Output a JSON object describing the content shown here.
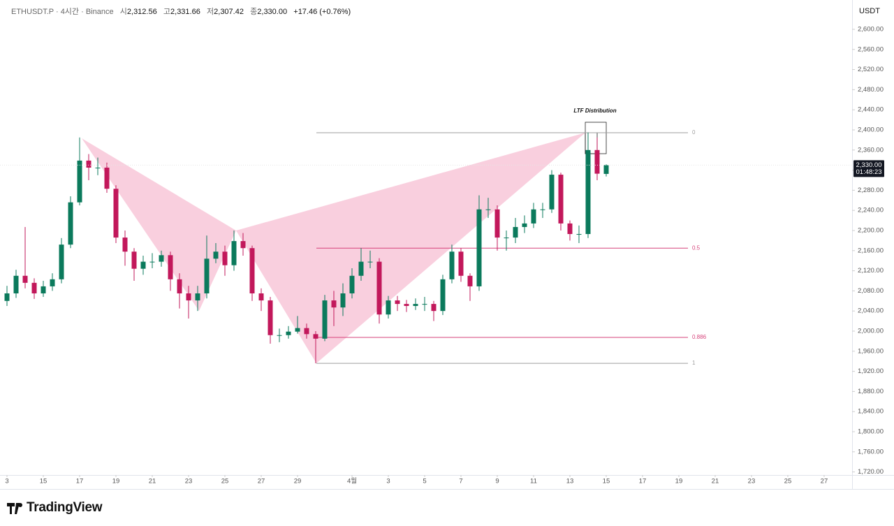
{
  "chart_data": {
    "type": "candlestick",
    "header": {
      "symbol": "ETHUSDT.P · 4시간 · Binance",
      "open_label": "시",
      "open": "2,312.56",
      "high_label": "고",
      "high": "2,331.66",
      "low_label": "저",
      "low": "2,307.42",
      "close_label": "종",
      "close": "2,330.00",
      "change": "+17.46 (+0.76%)"
    },
    "currency": "USDT",
    "last_price": {
      "value": 2330,
      "label": "2,330.00"
    },
    "countdown": "01:48:23",
    "annotation": "LTF Distribution",
    "fib_levels": [
      {
        "label": "0",
        "value": 2394.4
      },
      {
        "label": "0.5",
        "value": 2165
      },
      {
        "label": "0.886",
        "value": 1987.5
      },
      {
        "label": "1",
        "value": 1936
      }
    ],
    "brand": "TradingView",
    "up_color": "#0b7a5c",
    "down_color": "#c2185b",
    "x": [
      0,
      0.5,
      1,
      1.5,
      2,
      2.5,
      3,
      3.5,
      4,
      4.5,
      5,
      5.5,
      6,
      6.5,
      7,
      7.5,
      8,
      8.5,
      9,
      9.5,
      10,
      10.5,
      11,
      11.5,
      12,
      12.5,
      13,
      13.5,
      14,
      14.5,
      15,
      15.5,
      16,
      16.5,
      17,
      17.5,
      18,
      18.5,
      19,
      19.5,
      20,
      20.5,
      21,
      21.5,
      22,
      22.5,
      23,
      23.5,
      24,
      24.5,
      25,
      25.5,
      26,
      26.5,
      27,
      27.5,
      28,
      28.5,
      29,
      29.5,
      30,
      30.5,
      31,
      31.5,
      32,
      32.5,
      33
    ],
    "open": [
      2060,
      2075,
      2110,
      2096,
      2075,
      2089,
      2103,
      2172,
      2256,
      2339,
      2325,
      2325,
      2283,
      2186,
      2158,
      2124,
      2138,
      2138,
      2151,
      2103,
      2075,
      2061,
      2075,
      2144,
      2158,
      2131,
      2179,
      2165,
      2075,
      2061,
      1992,
      1992,
      1999,
      2006,
      1994,
      1985,
      2061,
      2047,
      2075,
      2110,
      2138,
      2138,
      2033,
      2061,
      2054,
      2050,
      2054,
      2054,
      2040,
      2103,
      2158,
      2110,
      2089,
      2242,
      2242,
      2186,
      2186,
      2207,
      2214,
      2242,
      2242,
      2311,
      2214,
      2193,
      2193,
      2360,
      2312.56
    ],
    "high": [
      2090,
      2122,
      2207,
      2105,
      2100,
      2115,
      2185,
      2268,
      2385,
      2352,
      2345,
      2335,
      2290,
      2200,
      2165,
      2150,
      2155,
      2160,
      2158,
      2115,
      2090,
      2090,
      2190,
      2175,
      2170,
      2200,
      2195,
      2170,
      2085,
      2068,
      2005,
      2010,
      2030,
      2015,
      2000,
      2072,
      2080,
      2095,
      2125,
      2165,
      2160,
      2145,
      2070,
      2070,
      2062,
      2065,
      2068,
      2060,
      2112,
      2172,
      2165,
      2115,
      2270,
      2265,
      2250,
      2200,
      2225,
      2230,
      2255,
      2255,
      2320,
      2315,
      2220,
      2210,
      2395,
      2385,
      2331.66
    ],
    "low": [
      2050,
      2066,
      2085,
      2064,
      2068,
      2080,
      2095,
      2165,
      2250,
      2300,
      2310,
      2275,
      2175,
      2130,
      2100,
      2112,
      2125,
      2128,
      2080,
      2045,
      2025,
      2040,
      2065,
      2135,
      2110,
      2120,
      2150,
      2060,
      2040,
      1975,
      1978,
      1985,
      1995,
      1985,
      1936,
      1980,
      2010,
      2030,
      2065,
      2100,
      2125,
      2015,
      2025,
      2040,
      2038,
      2042,
      2040,
      2020,
      2032,
      2095,
      2098,
      2060,
      2080,
      2225,
      2160,
      2160,
      2175,
      2195,
      2205,
      2225,
      2235,
      2200,
      2180,
      2175,
      2185,
      2300,
      2307.42
    ],
    "close": [
      2075,
      2110,
      2096,
      2075,
      2089,
      2103,
      2172,
      2256,
      2339,
      2325,
      2325,
      2283,
      2186,
      2158,
      2124,
      2138,
      2138,
      2151,
      2103,
      2075,
      2061,
      2075,
      2144,
      2158,
      2131,
      2179,
      2165,
      2075,
      2061,
      1992,
      1992,
      1999,
      2006,
      1994,
      1985,
      2061,
      2047,
      2075,
      2110,
      2138,
      2138,
      2033,
      2061,
      2054,
      2050,
      2054,
      2054,
      2040,
      2103,
      2158,
      2110,
      2089,
      2242,
      2242,
      2186,
      2186,
      2207,
      2214,
      2242,
      2242,
      2311,
      2214,
      2193,
      2193,
      2360,
      2313,
      2330
    ],
    "xlim": [
      -0.385,
      46.54
    ],
    "ylim": [
      1713.9,
      2658.3
    ],
    "xticks": [
      {
        "value": 0,
        "label": "3"
      },
      {
        "value": 2,
        "label": "15"
      },
      {
        "value": 4,
        "label": "17"
      },
      {
        "value": 6,
        "label": "19"
      },
      {
        "value": 8,
        "label": "21"
      },
      {
        "value": 10,
        "label": "23"
      },
      {
        "value": 12,
        "label": "25"
      },
      {
        "value": 14,
        "label": "27"
      },
      {
        "value": 16,
        "label": "29"
      },
      {
        "value": 19,
        "label": "4월"
      },
      {
        "value": 21,
        "label": "3"
      },
      {
        "value": 23,
        "label": "5"
      },
      {
        "value": 25,
        "label": "7"
      },
      {
        "value": 27,
        "label": "9"
      },
      {
        "value": 29,
        "label": "11"
      },
      {
        "value": 31,
        "label": "13"
      },
      {
        "value": 33,
        "label": "15"
      },
      {
        "value": 35,
        "label": "17"
      },
      {
        "value": 37,
        "label": "19"
      },
      {
        "value": 39,
        "label": "21"
      },
      {
        "value": 41,
        "label": "23"
      },
      {
        "value": 43,
        "label": "25"
      },
      {
        "value": 45,
        "label": "27"
      }
    ],
    "yticks": [
      {
        "value": 1720,
        "label": "1,720.00"
      },
      {
        "value": 1760,
        "label": "1,760.00"
      },
      {
        "value": 1800,
        "label": "1,800.00"
      },
      {
        "value": 1840,
        "label": "1,840.00"
      },
      {
        "value": 1880,
        "label": "1,880.00"
      },
      {
        "value": 1920,
        "label": "1,920.00"
      },
      {
        "value": 1960,
        "label": "1,960.00"
      },
      {
        "value": 2000,
        "label": "2,000.00"
      },
      {
        "value": 2040,
        "label": "2,040.00"
      },
      {
        "value": 2080,
        "label": "2,080.00"
      },
      {
        "value": 2120,
        "label": "2,120.00"
      },
      {
        "value": 2160,
        "label": "2,160.00"
      },
      {
        "value": 2200,
        "label": "2,200.00"
      },
      {
        "value": 2240,
        "label": "2,240.00"
      },
      {
        "value": 2280,
        "label": "2,280.00"
      },
      {
        "value": 2320,
        "label": "2,320.00"
      },
      {
        "value": 2360,
        "label": "2,360.00"
      },
      {
        "value": 2400,
        "label": "2,400.00"
      },
      {
        "value": 2440,
        "label": "2,440.00"
      },
      {
        "value": 2480,
        "label": "2,480.00"
      },
      {
        "value": 2520,
        "label": "2,520.00"
      },
      {
        "value": 2560,
        "label": "2,560.00"
      },
      {
        "value": 2600,
        "label": "2,600.00"
      }
    ]
  }
}
